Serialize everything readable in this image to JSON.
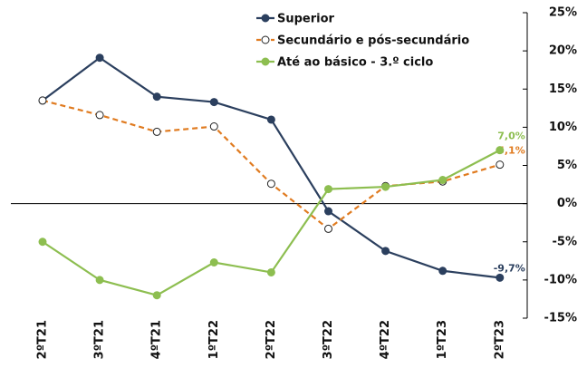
{
  "chart_data": {
    "type": "line",
    "categories": [
      "2ºT21",
      "3ºT21",
      "4ºT21",
      "1ºT22",
      "2ºT22",
      "3ºT22",
      "4ºT22",
      "1ºT23",
      "2ºT23"
    ],
    "series": [
      {
        "name": "Superior",
        "color": "#2b3f5e",
        "dashed": false,
        "marker_fill": "#2b3f5e",
        "values": [
          13.5,
          19.1,
          14.0,
          13.3,
          11.0,
          -1.0,
          -6.2,
          -8.8,
          -9.7
        ],
        "value_labels": [
          null,
          null,
          null,
          null,
          null,
          null,
          null,
          null,
          "-9,7%"
        ]
      },
      {
        "name": "Secundário e pós-secundário",
        "color": "#e07b20",
        "dashed": true,
        "marker_fill": "#ffffff",
        "values": [
          13.5,
          11.6,
          9.4,
          10.1,
          2.6,
          -3.3,
          2.3,
          2.9,
          5.1
        ],
        "value_labels": [
          null,
          null,
          null,
          null,
          null,
          null,
          null,
          null,
          "5,1%"
        ]
      },
      {
        "name": "Até ao básico - 3.º ciclo",
        "color": "#8dbe50",
        "dashed": false,
        "marker_fill": "#8dbe50",
        "values": [
          -5.0,
          -10.0,
          -12.0,
          -7.7,
          -9.0,
          1.9,
          2.2,
          3.1,
          7.0
        ],
        "value_labels": [
          null,
          null,
          null,
          null,
          null,
          null,
          null,
          null,
          "7,0%"
        ]
      }
    ],
    "ylim": [
      -15,
      25
    ],
    "yticks": [
      {
        "value": -15,
        "label": "-15%"
      },
      {
        "value": -10,
        "label": "-10%"
      },
      {
        "value": -5,
        "label": "-5%"
      },
      {
        "value": 0,
        "label": "0%"
      },
      {
        "value": 5,
        "label": "5%"
      },
      {
        "value": 10,
        "label": "10%"
      },
      {
        "value": 15,
        "label": "15%"
      },
      {
        "value": 20,
        "label": "20%"
      },
      {
        "value": 25,
        "label": "25%"
      }
    ],
    "y_axis_side": "right",
    "grid": false
  }
}
